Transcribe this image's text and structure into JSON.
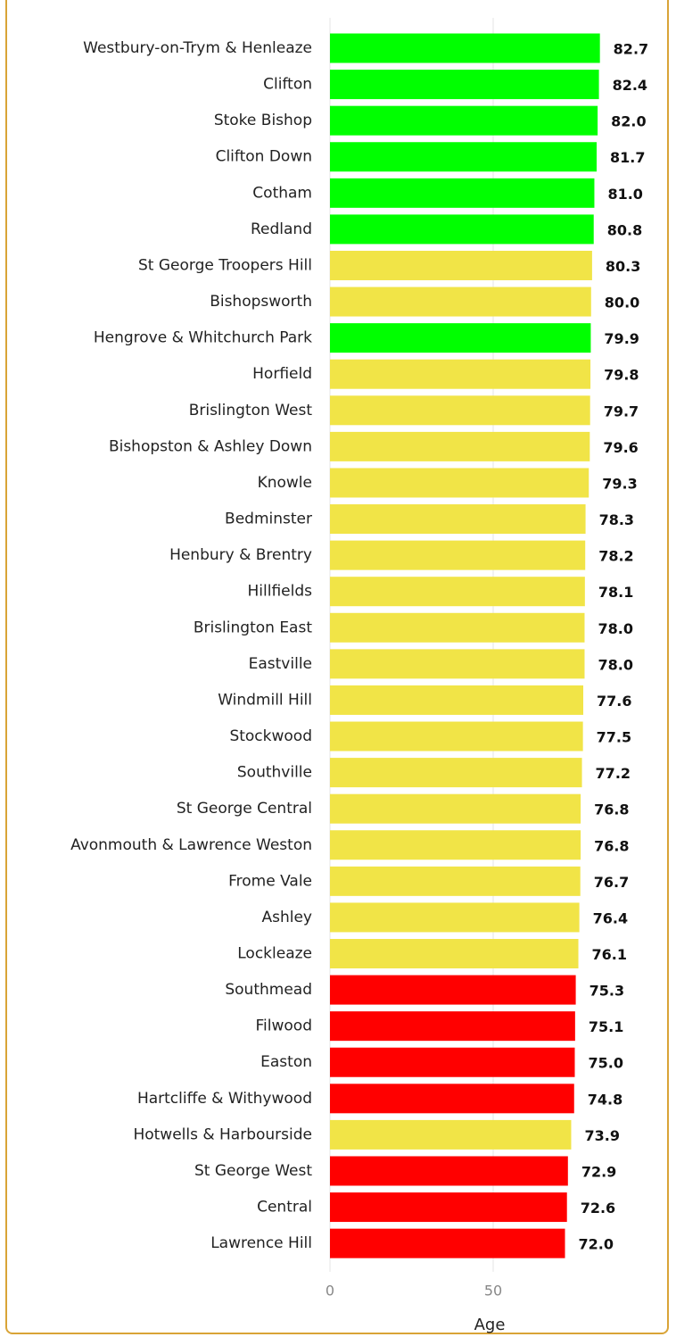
{
  "chart_data": {
    "type": "barh",
    "x_label": "Age",
    "categories": [
      "Westbury-on-Trym & Henleaze",
      "Clifton",
      "Stoke Bishop",
      "Clifton Down",
      "Cotham",
      "Redland",
      "St George Troopers Hill",
      "Bishopsworth",
      "Hengrove & Whitchurch Park",
      "Horfield",
      "Brislington West",
      "Bishopston & Ashley Down",
      "Knowle",
      "Bedminster",
      "Henbury & Brentry",
      "Hillfields",
      "Brislington East",
      "Eastville",
      "Windmill Hill",
      "Stockwood",
      "Southville",
      "St George Central",
      "Avonmouth & Lawrence Weston",
      "Frome Vale",
      "Ashley",
      "Lockleaze",
      "Southmead",
      "Filwood",
      "Easton",
      "Hartcliffe & Withywood",
      "Hotwells & Harbourside",
      "St George West",
      "Central",
      "Lawrence Hill"
    ],
    "values": [
      82.7,
      82.4,
      82.0,
      81.7,
      81.0,
      80.8,
      80.3,
      80.0,
      79.9,
      79.8,
      79.7,
      79.6,
      79.3,
      78.3,
      78.2,
      78.1,
      78.0,
      78.0,
      77.6,
      77.5,
      77.2,
      76.8,
      76.8,
      76.7,
      76.4,
      76.1,
      75.3,
      75.1,
      75.0,
      74.8,
      73.9,
      72.9,
      72.6,
      72.0
    ],
    "value_labels": [
      "82.7",
      "82.4",
      "82.0",
      "81.7",
      "81.0",
      "80.8",
      "80.3",
      "80.0",
      "79.9",
      "79.8",
      "79.7",
      "79.6",
      "79.3",
      "78.3",
      "78.2",
      "78.1",
      "78.0",
      "78.0",
      "77.6",
      "77.5",
      "77.2",
      "76.8",
      "76.8",
      "76.7",
      "76.4",
      "76.1",
      "75.3",
      "75.1",
      "75.0",
      "74.8",
      "73.9",
      "72.9",
      "72.6",
      "72.0"
    ],
    "colors": [
      "#00ff00",
      "#00ff00",
      "#00ff00",
      "#00ff00",
      "#00ff00",
      "#00ff00",
      "#f1e447",
      "#f1e447",
      "#00ff00",
      "#f1e447",
      "#f1e447",
      "#f1e447",
      "#f1e447",
      "#f1e447",
      "#f1e447",
      "#f1e447",
      "#f1e447",
      "#f1e447",
      "#f1e447",
      "#f1e447",
      "#f1e447",
      "#f1e447",
      "#f1e447",
      "#f1e447",
      "#f1e447",
      "#f1e447",
      "#ff0000",
      "#ff0000",
      "#ff0000",
      "#ff0000",
      "#f1e447",
      "#ff0000",
      "#ff0000",
      "#ff0000"
    ],
    "xlim": [
      0,
      100
    ],
    "xticks": [
      0,
      50
    ],
    "grid": true
  }
}
